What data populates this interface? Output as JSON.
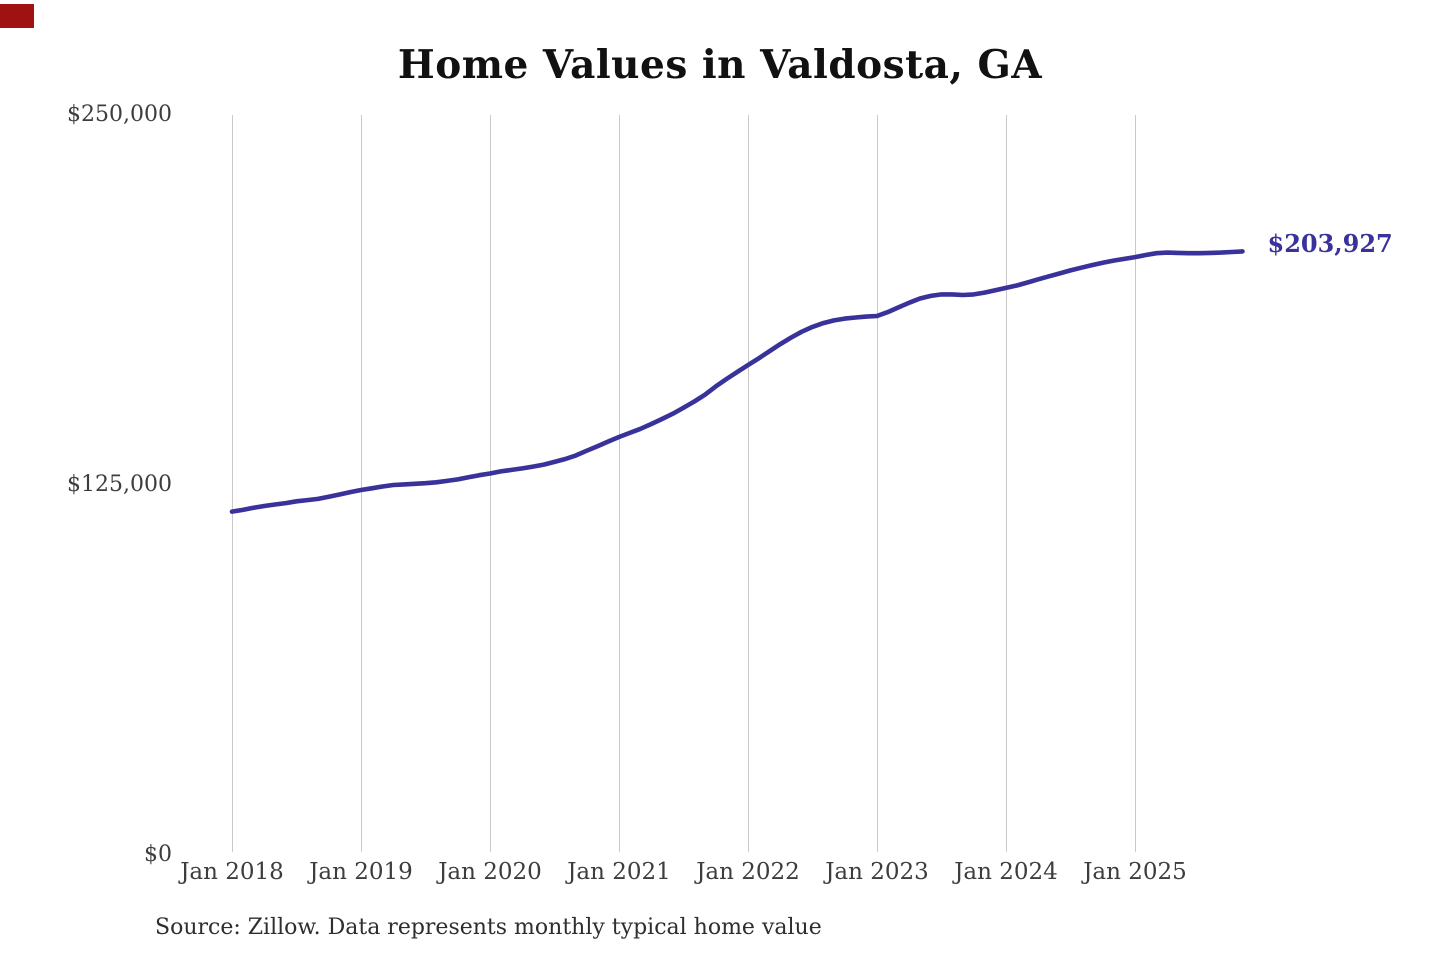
{
  "page": {
    "background_color": "#ffffff",
    "corner_marker_color": "#a01212"
  },
  "chart_data": {
    "type": "line",
    "title": "Home Values in Valdosta, GA",
    "source_note": "Source: Zillow. Data represents monthly typical home value",
    "end_label": "$203,927",
    "end_value": 203927,
    "line_color": "#39329b",
    "gridline_color": "#c9c9c9",
    "axis_label_color": "#3d3d3d",
    "ylim": [
      0,
      250000
    ],
    "grid": "vertical-only",
    "x_start": "Jan 2018",
    "points_per_year": 12,
    "x_tick_labels": [
      "Jan 2018",
      "Jan 2019",
      "Jan 2020",
      "Jan 2021",
      "Jan 2022",
      "Jan 2023",
      "Jan 2024",
      "Jan 2025"
    ],
    "y_ticks": [
      {
        "value": 0,
        "label": "$0"
      },
      {
        "value": 125000,
        "label": "$125,000"
      },
      {
        "value": 250000,
        "label": "$250,000"
      }
    ],
    "series": [
      {
        "name": "Monthly typical home value",
        "values": [
          116000,
          116600,
          117300,
          117900,
          118400,
          118900,
          119500,
          119900,
          120300,
          121000,
          121800,
          122600,
          123300,
          123900,
          124500,
          125000,
          125200,
          125400,
          125600,
          125900,
          126400,
          126900,
          127600,
          128300,
          128900,
          129600,
          130100,
          130600,
          131200,
          131900,
          132800,
          133800,
          135000,
          136600,
          138100,
          139700,
          141200,
          142600,
          144000,
          145600,
          147300,
          149100,
          151100,
          153200,
          155500,
          158300,
          160800,
          163200,
          165500,
          167800,
          170200,
          172600,
          174800,
          176800,
          178400,
          179700,
          180600,
          181200,
          181600,
          181900,
          182100,
          183400,
          185000,
          186600,
          188000,
          188900,
          189400,
          189400,
          189200,
          189400,
          190000,
          190800,
          191600,
          192400,
          193400,
          194500,
          195500,
          196500,
          197500,
          198400,
          199300,
          200100,
          200800,
          201400,
          202000,
          202700,
          203300,
          203500,
          203400,
          203300,
          203300,
          203400,
          203500,
          203700,
          203927
        ]
      }
    ]
  }
}
